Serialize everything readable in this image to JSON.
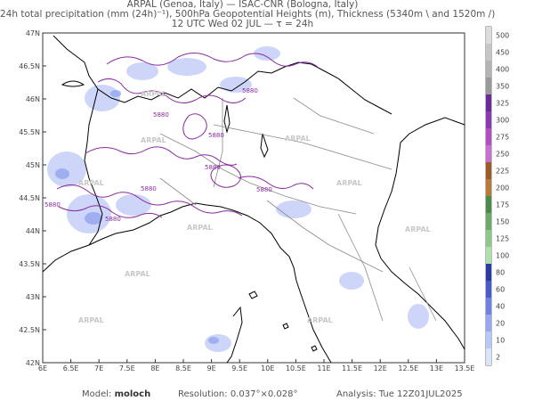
{
  "header": {
    "line1": "ARPAL (Genoa, Italy)  —  ISAC-CNR (Bologna, Italy)",
    "line2": "24h total precipitation (mm (24h)⁻¹), 500hPa Geopotential Heights (m), Thickness (5340m \\ and 1520m /)",
    "line3": "12 UTC Wed 02 JUL  —  τ = 24h"
  },
  "axes": {
    "lat_labels": [
      "47N",
      "46.5N",
      "46N",
      "45.5N",
      "45N",
      "44.5N",
      "44N",
      "43.5N",
      "43N",
      "42.5N",
      "42N"
    ],
    "lon_labels": [
      "6E",
      "6.5E",
      "7E",
      "7.5E",
      "8E",
      "8.5E",
      "9E",
      "9.5E",
      "10E",
      "10.5E",
      "11E",
      "11.5E",
      "12E",
      "12.5E",
      "13E",
      "13.5E"
    ]
  },
  "colorbar": {
    "labels": [
      "500",
      "450",
      "400",
      "350",
      "325",
      "300",
      "275",
      "250",
      "225",
      "200",
      "175",
      "150",
      "125",
      "100",
      "80",
      "60",
      "40",
      "20",
      "10",
      "2"
    ],
    "colors": [
      "#dcdcdc",
      "#c6c6c6",
      "#b4b4b4",
      "#9a9a9a",
      "#6a2a9a",
      "#8a3ab0",
      "#b050c0",
      "#c870d0",
      "#9a5a2a",
      "#b87a3a",
      "#4a8a4a",
      "#6aaa6a",
      "#8cc88c",
      "#aee0ae",
      "#2a3aa0",
      "#4a5ac8",
      "#7080e0",
      "#98a8f0",
      "#b8c8f8",
      "#dce4fc"
    ]
  },
  "contour_labels": [
    "5880",
    "5880",
    "5880",
    "5880",
    "5880",
    "5880",
    "5880",
    "5880"
  ],
  "watermark": "ARPAL",
  "footer": {
    "model_label": "Model:",
    "model_value": "moloch",
    "resolution_label": "Resolution:",
    "resolution_value": "0.037°×0.028°",
    "analysis_label": "Analysis:",
    "analysis_value": "Tue 12Z01JUL2025"
  },
  "colors": {
    "contour": "#8a2aa0",
    "coast": "#000000",
    "border": "#888888",
    "precip_light": "#c8d2f8",
    "precip_mid": "#98a8f0"
  }
}
